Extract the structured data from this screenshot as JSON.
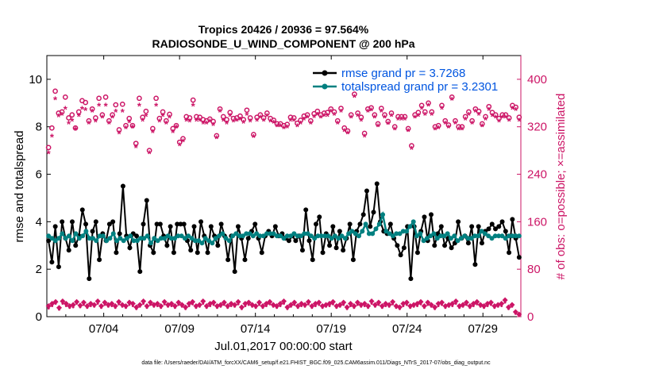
{
  "chart_data": {
    "type": "line",
    "title_line1": "Tropics 20426 / 20936 = 97.564%",
    "title_line2": "RADIOSONDE_U_WIND_COMPONENT @ 200 hPa",
    "xlabel": "Jul.01,2017 00:00:00 start",
    "ylabel_left": "rmse and totalspread",
    "ylabel_right": "# of obs: o=possible; ×=assimilated",
    "footer": "data file: /Users/raeder/DAI/ATM_forcXX/CAM6_setup/f.e21.FHIST_BGC.f09_025.CAM6assim.011/Diags_NTrS_2017-07/obs_diag_output.nc",
    "xlim": [
      0,
      125
    ],
    "ylim_left": [
      0,
      11
    ],
    "ylim_right": [
      0,
      440
    ],
    "x_ticks": [
      {
        "x": 15,
        "label": "07/04"
      },
      {
        "x": 35,
        "label": "07/09"
      },
      {
        "x": 55,
        "label": "07/14"
      },
      {
        "x": 75,
        "label": "07/19"
      },
      {
        "x": 95,
        "label": "07/24"
      },
      {
        "x": 115,
        "label": "07/29"
      }
    ],
    "y_ticks_left": [
      0,
      2,
      4,
      6,
      8,
      10
    ],
    "y_ticks_right": [
      0,
      80,
      160,
      240,
      320,
      400
    ],
    "colors": {
      "rmse": "#000000",
      "spread": "#008080",
      "obs": "#cc1566",
      "legend_text": "#0055e0",
      "axis": "#000000"
    },
    "legend": [
      {
        "label": "rmse grand pr = 3.7268",
        "series": "rmse"
      },
      {
        "label": "totalspread grand pr = 3.2301",
        "series": "spread"
      }
    ],
    "series": [
      {
        "name": "rmse",
        "axis": "left",
        "values": [
          3.2,
          2.3,
          3.8,
          2.1,
          4.0,
          3.3,
          2.8,
          4.0,
          3.0,
          3.4,
          4.5,
          3.9,
          1.6,
          3.6,
          4.0,
          2.4,
          3.5,
          3.2,
          3.9,
          4.0,
          2.7,
          3.5,
          5.5,
          3.4,
          2.9,
          3.5,
          3.4,
          1.9,
          3.9,
          4.9,
          3.0,
          2.7,
          3.9,
          3.9,
          3.4,
          3.0,
          3.8,
          2.7,
          3.9,
          3.9,
          3.9,
          3.2,
          2.8,
          3.8,
          2.7,
          4.0,
          3.4,
          2.7,
          3.8,
          3.4,
          3.0,
          3.9,
          3.4,
          2.4,
          3.4,
          1.9,
          3.8,
          3.3,
          2.4,
          3.3,
          3.6,
          3.9,
          3.3,
          2.7,
          3.4,
          3.6,
          3.4,
          3.8,
          3.4,
          3.5,
          3.3,
          3.2,
          3.4,
          3.2,
          3.4,
          2.8,
          4.5,
          3.2,
          2.4,
          3.9,
          4.2,
          2.7,
          3.5,
          3.0,
          3.8,
          2.9,
          3.6,
          2.8,
          3.3,
          3.9,
          2.4,
          3.6,
          3.9,
          4.3,
          5.3,
          3.8,
          4.4,
          5.6,
          4.0,
          3.6,
          3.5,
          3.9,
          3.3,
          3.0,
          2.6,
          2.9,
          3.8,
          1.6,
          3.8,
          2.7,
          3.6,
          4.2,
          3.2,
          4.3,
          3.0,
          3.5,
          3.8,
          3.0,
          3.3,
          2.9,
          3.1,
          4.0,
          3.3,
          3.4,
          3.1,
          3.8,
          2.2,
          3.8,
          3.1,
          3.6,
          3.7,
          3.9,
          3.7,
          3.8,
          4.0,
          3.6,
          2.7,
          4.1,
          3.3,
          2.5
        ]
      },
      {
        "name": "spread",
        "axis": "left",
        "values": [
          3.4,
          3.3,
          3.2,
          3.3,
          3.5,
          3.3,
          3.4,
          3.2,
          3.5,
          3.3,
          3.4,
          3.6,
          3.3,
          3.3,
          3.2,
          3.4,
          3.4,
          3.2,
          3.3,
          3.5,
          3.2,
          3.3,
          3.2,
          3.3,
          3.4,
          3.2,
          3.2,
          3.3,
          3.3,
          3.4,
          3.1,
          3.3,
          3.2,
          3.3,
          3.3,
          3.4,
          3.3,
          3.3,
          3.4,
          3.4,
          3.3,
          3.4,
          3.3,
          3.2,
          3.2,
          3.1,
          3.3,
          3.2,
          3.1,
          3.3,
          3.4,
          3.5,
          3.3,
          3.2,
          3.4,
          3.5,
          3.4,
          3.4,
          3.5,
          3.5,
          3.4,
          3.5,
          3.4,
          3.4,
          3.5,
          3.5,
          3.5,
          3.4,
          3.4,
          3.3,
          3.4,
          3.4,
          3.5,
          3.4,
          3.4,
          3.5,
          3.5,
          3.4,
          3.3,
          3.4,
          3.4,
          3.4,
          3.4,
          3.3,
          3.4,
          3.3,
          3.4,
          3.3,
          3.5,
          3.6,
          3.5,
          3.4,
          3.6,
          3.9,
          3.5,
          3.5,
          3.7,
          3.9,
          4.3,
          3.6,
          3.5,
          3.4,
          3.5,
          3.5,
          3.6,
          3.6,
          3.8,
          4.0,
          3.4,
          3.5,
          3.2,
          3.3,
          3.4,
          3.5,
          3.3,
          3.4,
          3.4,
          3.5,
          3.3,
          3.4,
          3.2,
          3.3,
          3.4,
          3.3,
          3.3,
          3.4,
          3.4,
          3.6,
          3.5,
          3.4,
          3.3,
          3.4,
          3.4,
          3.4,
          3.3,
          3.4,
          3.4,
          3.4,
          3.4
        ]
      },
      {
        "name": "obs_possible",
        "axis": "right",
        "marker": "circle",
        "values": [
          285,
          318,
          380,
          343,
          345,
          370,
          335,
          340,
          318,
          345,
          364,
          361,
          330,
          350,
          335,
          368,
          340,
          370,
          330,
          340,
          357,
          315,
          358,
          322,
          334,
          322,
          292,
          368,
          336,
          346,
          280,
          317,
          368,
          334,
          345,
          330,
          341,
          317,
          322,
          294,
          300,
          337,
          335,
          365,
          337,
          336,
          332,
          330,
          333,
          329,
          305,
          350,
          337,
          332,
          344,
          334,
          335,
          338,
          332,
          348,
          335,
          307,
          336,
          340,
          335,
          343,
          334,
          331,
          325,
          325,
          322,
          324,
          336,
          335,
          326,
          331,
          338,
          340,
          330,
          342,
          346,
          340,
          343,
          344,
          350,
          345,
          330,
          351,
          318,
          313,
          340,
          375,
          343,
          336,
          309,
          350,
          352,
          340,
          325,
          351,
          340,
          329,
          343,
          320,
          337,
          337,
          337,
          317,
          288,
          340,
          344,
          356,
          345,
          360,
          345,
          320,
          322,
          356,
          330,
          323,
          370,
          330,
          320,
          320,
          337,
          345,
          330,
          350,
          346,
          325,
          337,
          354,
          344,
          340,
          334,
          340,
          340,
          335,
          356,
          353,
          336
        ]
      },
      {
        "name": "obs_assimilated",
        "axis": "right",
        "marker": "star",
        "values": [
          275,
          303,
          366,
          337,
          340,
          350,
          325,
          330,
          315,
          338,
          350,
          348,
          325,
          345,
          328,
          355,
          335,
          355,
          325,
          335,
          345,
          308,
          345,
          317,
          327,
          318,
          285,
          355,
          330,
          338,
          275,
          310,
          355,
          328,
          338,
          325,
          335,
          310,
          318,
          288,
          295,
          330,
          328,
          355,
          330,
          330,
          325,
          325,
          328,
          322,
          300,
          345,
          330,
          325,
          338,
          328,
          330,
          332,
          326,
          340,
          328,
          302,
          330,
          335,
          330,
          338,
          328,
          326,
          320,
          320,
          317,
          318,
          330,
          330,
          320,
          325,
          332,
          335,
          325,
          336,
          340,
          335,
          338,
          338,
          345,
          340,
          325,
          345,
          312,
          308,
          335,
          370,
          338,
          330,
          303,
          345,
          347,
          335,
          320,
          345,
          335,
          324,
          338,
          315,
          332,
          332,
          332,
          312,
          282,
          335,
          338,
          350,
          340,
          355,
          340,
          315,
          317,
          350,
          325,
          318,
          365,
          325,
          315,
          315,
          332,
          340,
          325,
          345,
          340,
          320,
          332,
          348,
          338,
          335,
          328,
          335,
          335,
          330,
          350,
          348,
          330
        ]
      }
    ],
    "obs_bottom_possible": [
      18,
      22,
      25,
      15,
      26,
      22,
      18,
      20,
      25,
      19,
      24,
      18,
      22,
      20,
      26,
      18,
      24,
      20,
      22,
      18,
      25,
      20,
      18,
      24,
      22,
      16,
      20,
      26,
      18,
      24,
      20,
      22,
      18,
      25,
      20,
      22,
      18,
      24,
      20,
      16,
      22,
      25,
      18,
      20,
      26,
      18,
      22,
      24,
      18,
      20,
      24,
      18,
      22,
      20,
      25,
      16,
      22,
      24,
      20,
      18,
      24,
      18,
      22,
      25,
      20,
      18,
      22,
      26,
      16,
      20,
      24,
      18,
      22,
      20,
      25,
      18,
      22,
      24,
      18,
      20,
      22,
      25,
      18,
      20,
      24,
      16,
      22,
      18,
      24,
      20,
      22,
      18,
      26,
      20,
      24,
      18,
      22,
      20,
      25,
      18,
      16,
      22,
      24,
      18,
      20,
      22,
      25,
      18,
      24,
      20,
      16,
      22,
      24,
      18,
      20,
      22,
      26,
      18,
      20,
      24,
      18,
      22,
      25,
      20,
      18,
      22,
      24,
      18,
      20,
      22,
      28,
      16,
      20,
      8,
      4
    ],
    "obs_bottom_assimilated": [
      14,
      18,
      22,
      12,
      22,
      18,
      15,
      16,
      22,
      16,
      20,
      15,
      18,
      17,
      22,
      15,
      20,
      17,
      18,
      15,
      21,
      17,
      15,
      20,
      18,
      13,
      17,
      22,
      15,
      20,
      17,
      18,
      15,
      21,
      17,
      18,
      15,
      20,
      17,
      13,
      18,
      21,
      15,
      17,
      22,
      15,
      18,
      20,
      15,
      17,
      20,
      15,
      18,
      17,
      21,
      13,
      18,
      20,
      17,
      15,
      20,
      15,
      18,
      21,
      17,
      15,
      18,
      22,
      13,
      17,
      20,
      15,
      18,
      17,
      21,
      15,
      18,
      20,
      15,
      17,
      18,
      21,
      15,
      17,
      20,
      13,
      18,
      15,
      20,
      17,
      18,
      15,
      22,
      17,
      20,
      15,
      18,
      17,
      21,
      15,
      13,
      18,
      20,
      15,
      17,
      18,
      21,
      15,
      20,
      17,
      13,
      18,
      20,
      15,
      17,
      18,
      22,
      15,
      17,
      20,
      15,
      18,
      21,
      17,
      15,
      18,
      20,
      15,
      17,
      18,
      24,
      13,
      17,
      5,
      2
    ]
  }
}
